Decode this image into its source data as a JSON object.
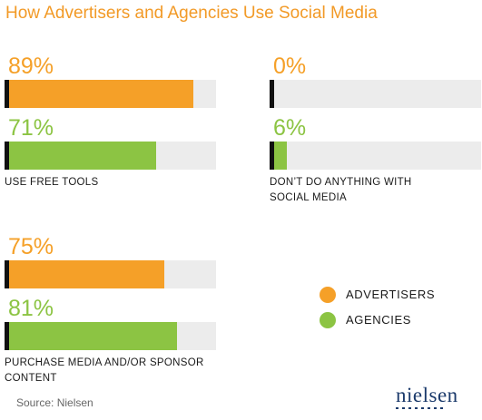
{
  "title": "How Advertisers and Agencies Use Social Media",
  "colors": {
    "advertisers": "#f5a028",
    "agencies": "#8cc443",
    "track": "#ececec",
    "title": "#f29a27"
  },
  "chart_data": [
    {
      "type": "bar",
      "label": "USE FREE TOOLS",
      "xlim": [
        0,
        100
      ],
      "series": [
        {
          "name": "ADVERTISERS",
          "value": 89,
          "value_label": "89%"
        },
        {
          "name": "AGENCIES",
          "value": 71,
          "value_label": "71%"
        }
      ]
    },
    {
      "type": "bar",
      "label": "DON’T DO ANYTHING WITH\nSOCIAL MEDIA",
      "xlim": [
        0,
        100
      ],
      "series": [
        {
          "name": "ADVERTISERS",
          "value": 0,
          "value_label": "0%"
        },
        {
          "name": "AGENCIES",
          "value": 6,
          "value_label": "6%"
        }
      ]
    },
    {
      "type": "bar",
      "label": "PURCHASE MEDIA AND/OR SPONSOR\nCONTENT",
      "xlim": [
        0,
        100
      ],
      "series": [
        {
          "name": "ADVERTISERS",
          "value": 75,
          "value_label": "75%"
        },
        {
          "name": "AGENCIES",
          "value": 81,
          "value_label": "81%"
        }
      ]
    }
  ],
  "legend": [
    {
      "label": "ADVERTISERS",
      "color": "#f5a028"
    },
    {
      "label": "AGENCIES",
      "color": "#8cc443"
    }
  ],
  "source": "Source: Nielsen",
  "logo_text": "nielsen"
}
